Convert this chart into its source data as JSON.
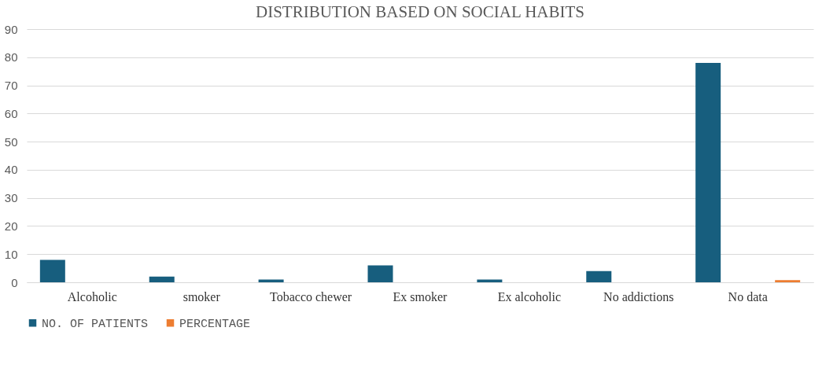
{
  "chart_data": {
    "type": "bar",
    "title": "DISTRIBUTION BASED ON SOCIAL HABITS",
    "categories": [
      "Alcoholic",
      "smoker",
      "Tobacco  chewer",
      "Ex smoker",
      "Ex alcoholic",
      "No addictions",
      "No data"
    ],
    "series": [
      {
        "name": "NO. OF PATIENTS",
        "color": "#175e7e",
        "values": [
          8,
          2,
          1,
          6,
          1,
          4,
          78
        ]
      },
      {
        "name": "PERCENTAGE",
        "color": "#ed7d31",
        "values": [
          null,
          null,
          null,
          null,
          null,
          null,
          0.8
        ]
      }
    ],
    "ylim": [
      0,
      90
    ],
    "yticks": [
      0,
      10,
      20,
      30,
      40,
      50,
      60,
      70,
      80,
      90
    ],
    "grid": "y",
    "legend": "bottom"
  }
}
